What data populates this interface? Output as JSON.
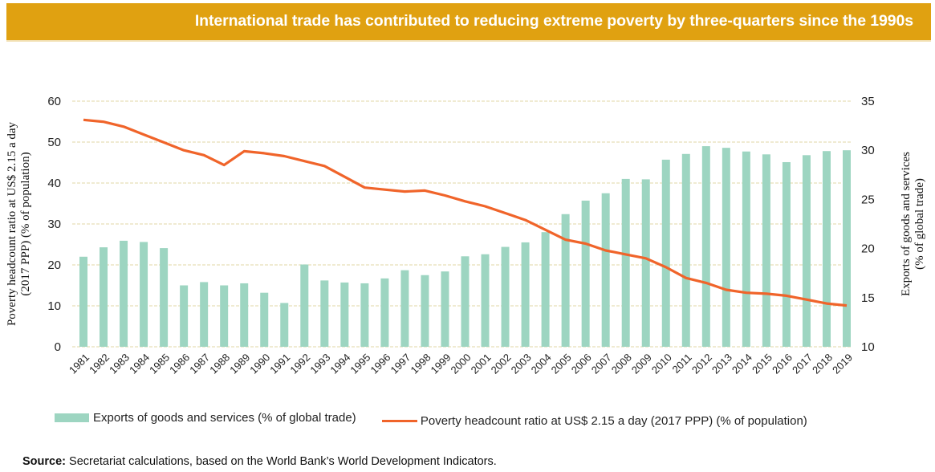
{
  "banner": {
    "title": "International trade has contributed to reducing extreme poverty by three-quarters since the 1990s"
  },
  "colors": {
    "banner": "#e0a111",
    "bars": "#9dd5c1",
    "line": "#f0642a",
    "grid": "#e6dfb8"
  },
  "chart_data": {
    "type": "bar+line",
    "title": "International trade has contributed to reducing extreme poverty by three-quarters since the 1990s",
    "categories": [
      "1981",
      "1982",
      "1983",
      "1984",
      "1985",
      "1986",
      "1987",
      "1988",
      "1989",
      "1990",
      "1991",
      "1992",
      "1993",
      "1994",
      "1995",
      "1996",
      "1997",
      "1998",
      "1999",
      "2000",
      "2001",
      "2002",
      "2003",
      "2004",
      "2005",
      "2006",
      "2007",
      "2008",
      "2009",
      "2010",
      "2011",
      "2012",
      "2013",
      "2014",
      "2015",
      "2016",
      "2017",
      "2018",
      "2019"
    ],
    "left_axis": {
      "label": "Poverty headcount ratio at US$ 2.15 a day (2017 PPP) (% of population)",
      "label_lines": [
        "Poverty headcount ratio at US$ 2.15 a day",
        "(2017 PPP) (% of population)"
      ],
      "ylim": [
        0,
        60
      ],
      "ticks": [
        "0",
        "10",
        "20",
        "30",
        "40",
        "50",
        "60"
      ]
    },
    "right_axis": {
      "label": "Exports of goods and services (% of global trade)",
      "label_lines": [
        "Exports of goods and services",
        "(% of global trade)"
      ],
      "ylim": [
        10,
        35
      ],
      "ticks": [
        "10",
        "15",
        "20",
        "25",
        "30",
        "35"
      ]
    },
    "grid": true,
    "legend_position": "bottom",
    "series": [
      {
        "name": "Exports of goods and services (% of global trade)",
        "type": "bar",
        "axis": "left",
        "values": [
          22.0,
          24.3,
          25.9,
          25.6,
          24.1,
          15.0,
          15.8,
          15.0,
          15.5,
          13.2,
          10.7,
          20.1,
          16.2,
          15.7,
          15.5,
          16.7,
          18.7,
          17.5,
          18.4,
          22.1,
          22.6,
          24.4,
          25.5,
          28.0,
          32.4,
          35.7,
          37.5,
          41.0,
          40.9,
          45.7,
          47.1,
          49.0,
          48.6,
          47.7,
          47.0,
          45.1,
          46.8,
          47.8,
          48.0
        ]
      },
      {
        "name": "Poverty headcount ratio at US$ 2.15 a day (2017 PPP) (% of population)",
        "type": "line",
        "axis": "right",
        "values": [
          33.1,
          32.9,
          32.4,
          31.6,
          30.8,
          30.0,
          29.5,
          28.5,
          29.9,
          29.7,
          29.4,
          28.9,
          28.4,
          27.3,
          26.2,
          26.0,
          25.8,
          25.9,
          25.4,
          24.8,
          24.3,
          23.6,
          22.9,
          21.9,
          20.9,
          20.5,
          19.8,
          19.4,
          19.0,
          18.1,
          17.0,
          16.5,
          15.8,
          15.5,
          15.4,
          15.2,
          14.8,
          14.4,
          14.2
        ]
      }
    ]
  },
  "legend": {
    "bars_label": "Exports of goods and services (% of global trade)",
    "line_label": "Poverty headcount ratio at US$ 2.15 a day (2017 PPP) (% of population)"
  },
  "source": {
    "prefix": "Source:",
    "text": " Secretariat calculations, based on the World Bank’s World Development Indicators."
  }
}
